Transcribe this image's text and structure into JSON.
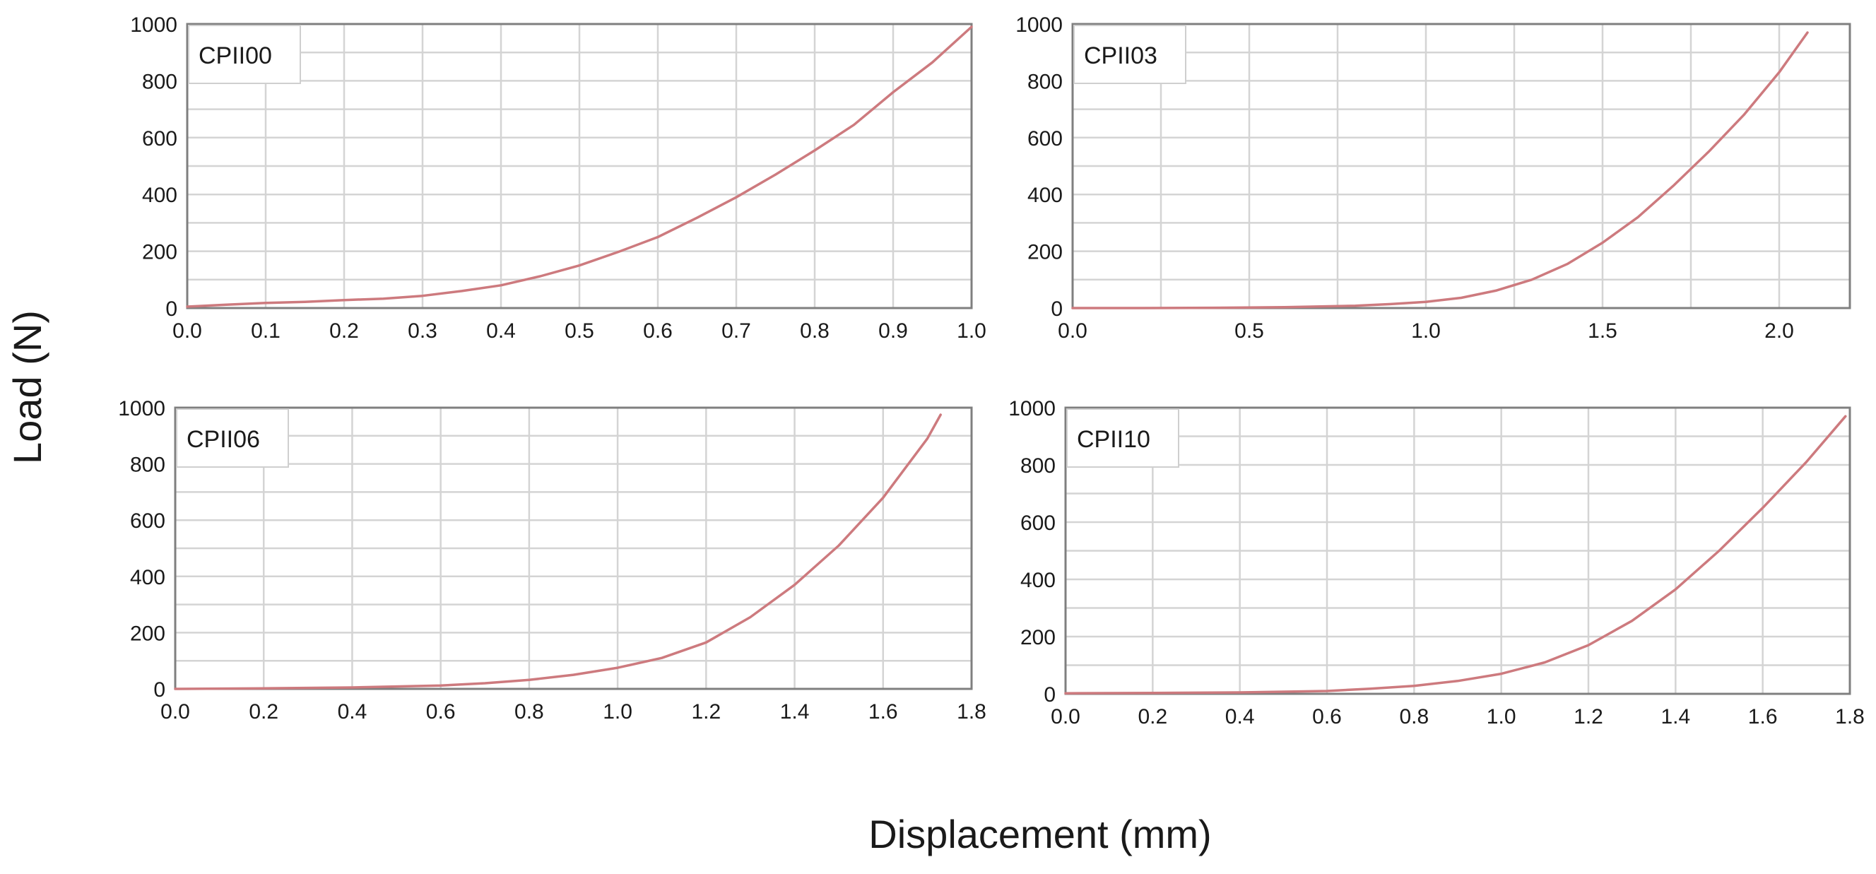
{
  "figure": {
    "ylabel": "Load (N)",
    "xlabel": "Displacement (mm)"
  },
  "colors": {
    "curve": "#cd7a7e",
    "grid": "#d4d4d4",
    "frame": "#7f7f7f",
    "background": "#ffffff"
  },
  "chart_data": [
    {
      "type": "line",
      "label": "CPII00",
      "xlim": [
        0,
        1.0
      ],
      "ylim": [
        0,
        1000
      ],
      "xticks": [
        0.0,
        0.1,
        0.2,
        0.3,
        0.4,
        0.5,
        0.6,
        0.7,
        0.8,
        0.9,
        1.0
      ],
      "xtick_labels": [
        "0.0",
        "0.1",
        "0.2",
        "0.3",
        "0.4",
        "0.5",
        "0.6",
        "0.7",
        "0.8",
        "0.9",
        "1.0"
      ],
      "yticks": [
        0,
        200,
        400,
        600,
        800,
        1000
      ],
      "ytick_labels": [
        "0",
        "200",
        "400",
        "600",
        "800",
        "1000"
      ],
      "grid": true,
      "series": [
        {
          "x": [
            0.0,
            0.05,
            0.1,
            0.15,
            0.2,
            0.25,
            0.3,
            0.35,
            0.4,
            0.45,
            0.5,
            0.55,
            0.6,
            0.65,
            0.7,
            0.75,
            0.8,
            0.85,
            0.9,
            0.95,
            1.0
          ],
          "y": [
            5,
            12,
            18,
            22,
            28,
            33,
            43,
            60,
            80,
            112,
            150,
            198,
            250,
            318,
            390,
            470,
            555,
            645,
            760,
            865,
            990
          ]
        }
      ]
    },
    {
      "type": "line",
      "label": "CPII03",
      "xlim": [
        0,
        2.2
      ],
      "ylim": [
        0,
        1000
      ],
      "xticks": [
        0.0,
        0.5,
        1.0,
        1.5,
        2.0
      ],
      "xtick_labels": [
        "0.0",
        "0.5",
        "1.0",
        "1.5",
        "2.0"
      ],
      "yticks": [
        0,
        200,
        400,
        600,
        800,
        1000
      ],
      "ytick_labels": [
        "0",
        "200",
        "400",
        "600",
        "800",
        "1000"
      ],
      "grid": true,
      "series": [
        {
          "x": [
            0.0,
            0.2,
            0.4,
            0.6,
            0.8,
            0.9,
            1.0,
            1.1,
            1.2,
            1.3,
            1.4,
            1.5,
            1.6,
            1.7,
            1.8,
            1.9,
            2.0,
            2.08
          ],
          "y": [
            0,
            0,
            1,
            3,
            8,
            14,
            22,
            36,
            62,
            100,
            155,
            230,
            320,
            430,
            550,
            680,
            830,
            970
          ]
        }
      ]
    },
    {
      "type": "line",
      "label": "CPII06",
      "xlim": [
        0,
        1.8
      ],
      "ylim": [
        0,
        1000
      ],
      "xticks": [
        0.0,
        0.2,
        0.4,
        0.6,
        0.8,
        1.0,
        1.2,
        1.4,
        1.6,
        1.8
      ],
      "xtick_labels": [
        "0.0",
        "0.2",
        "0.4",
        "0.6",
        "0.8",
        "1.0",
        "1.2",
        "1.4",
        "1.6",
        "1.8"
      ],
      "yticks": [
        0,
        200,
        400,
        600,
        800,
        1000
      ],
      "ytick_labels": [
        "0",
        "200",
        "400",
        "600",
        "800",
        "1000"
      ],
      "grid": true,
      "series": [
        {
          "x": [
            0.0,
            0.2,
            0.4,
            0.6,
            0.7,
            0.8,
            0.9,
            1.0,
            1.1,
            1.2,
            1.3,
            1.4,
            1.5,
            1.6,
            1.7,
            1.73
          ],
          "y": [
            0,
            2,
            5,
            12,
            20,
            32,
            50,
            75,
            110,
            165,
            255,
            370,
            510,
            680,
            890,
            975
          ]
        }
      ]
    },
    {
      "type": "line",
      "label": "CPII10",
      "xlim": [
        0,
        1.8
      ],
      "ylim": [
        0,
        1000
      ],
      "xticks": [
        0.0,
        0.2,
        0.4,
        0.6,
        0.8,
        1.0,
        1.2,
        1.4,
        1.6,
        1.8
      ],
      "xtick_labels": [
        "0.0",
        "0.2",
        "0.4",
        "0.6",
        "0.8",
        "1.0",
        "1.2",
        "1.4",
        "1.6",
        "1.8"
      ],
      "yticks": [
        0,
        200,
        400,
        600,
        800,
        1000
      ],
      "ytick_labels": [
        "0",
        "200",
        "400",
        "600",
        "800",
        "1000"
      ],
      "grid": true,
      "series": [
        {
          "x": [
            0.0,
            0.2,
            0.4,
            0.6,
            0.7,
            0.8,
            0.9,
            1.0,
            1.1,
            1.2,
            1.3,
            1.4,
            1.5,
            1.6,
            1.7,
            1.79
          ],
          "y": [
            2,
            3,
            5,
            10,
            18,
            28,
            45,
            70,
            110,
            170,
            255,
            365,
            500,
            650,
            810,
            970
          ]
        }
      ]
    }
  ]
}
